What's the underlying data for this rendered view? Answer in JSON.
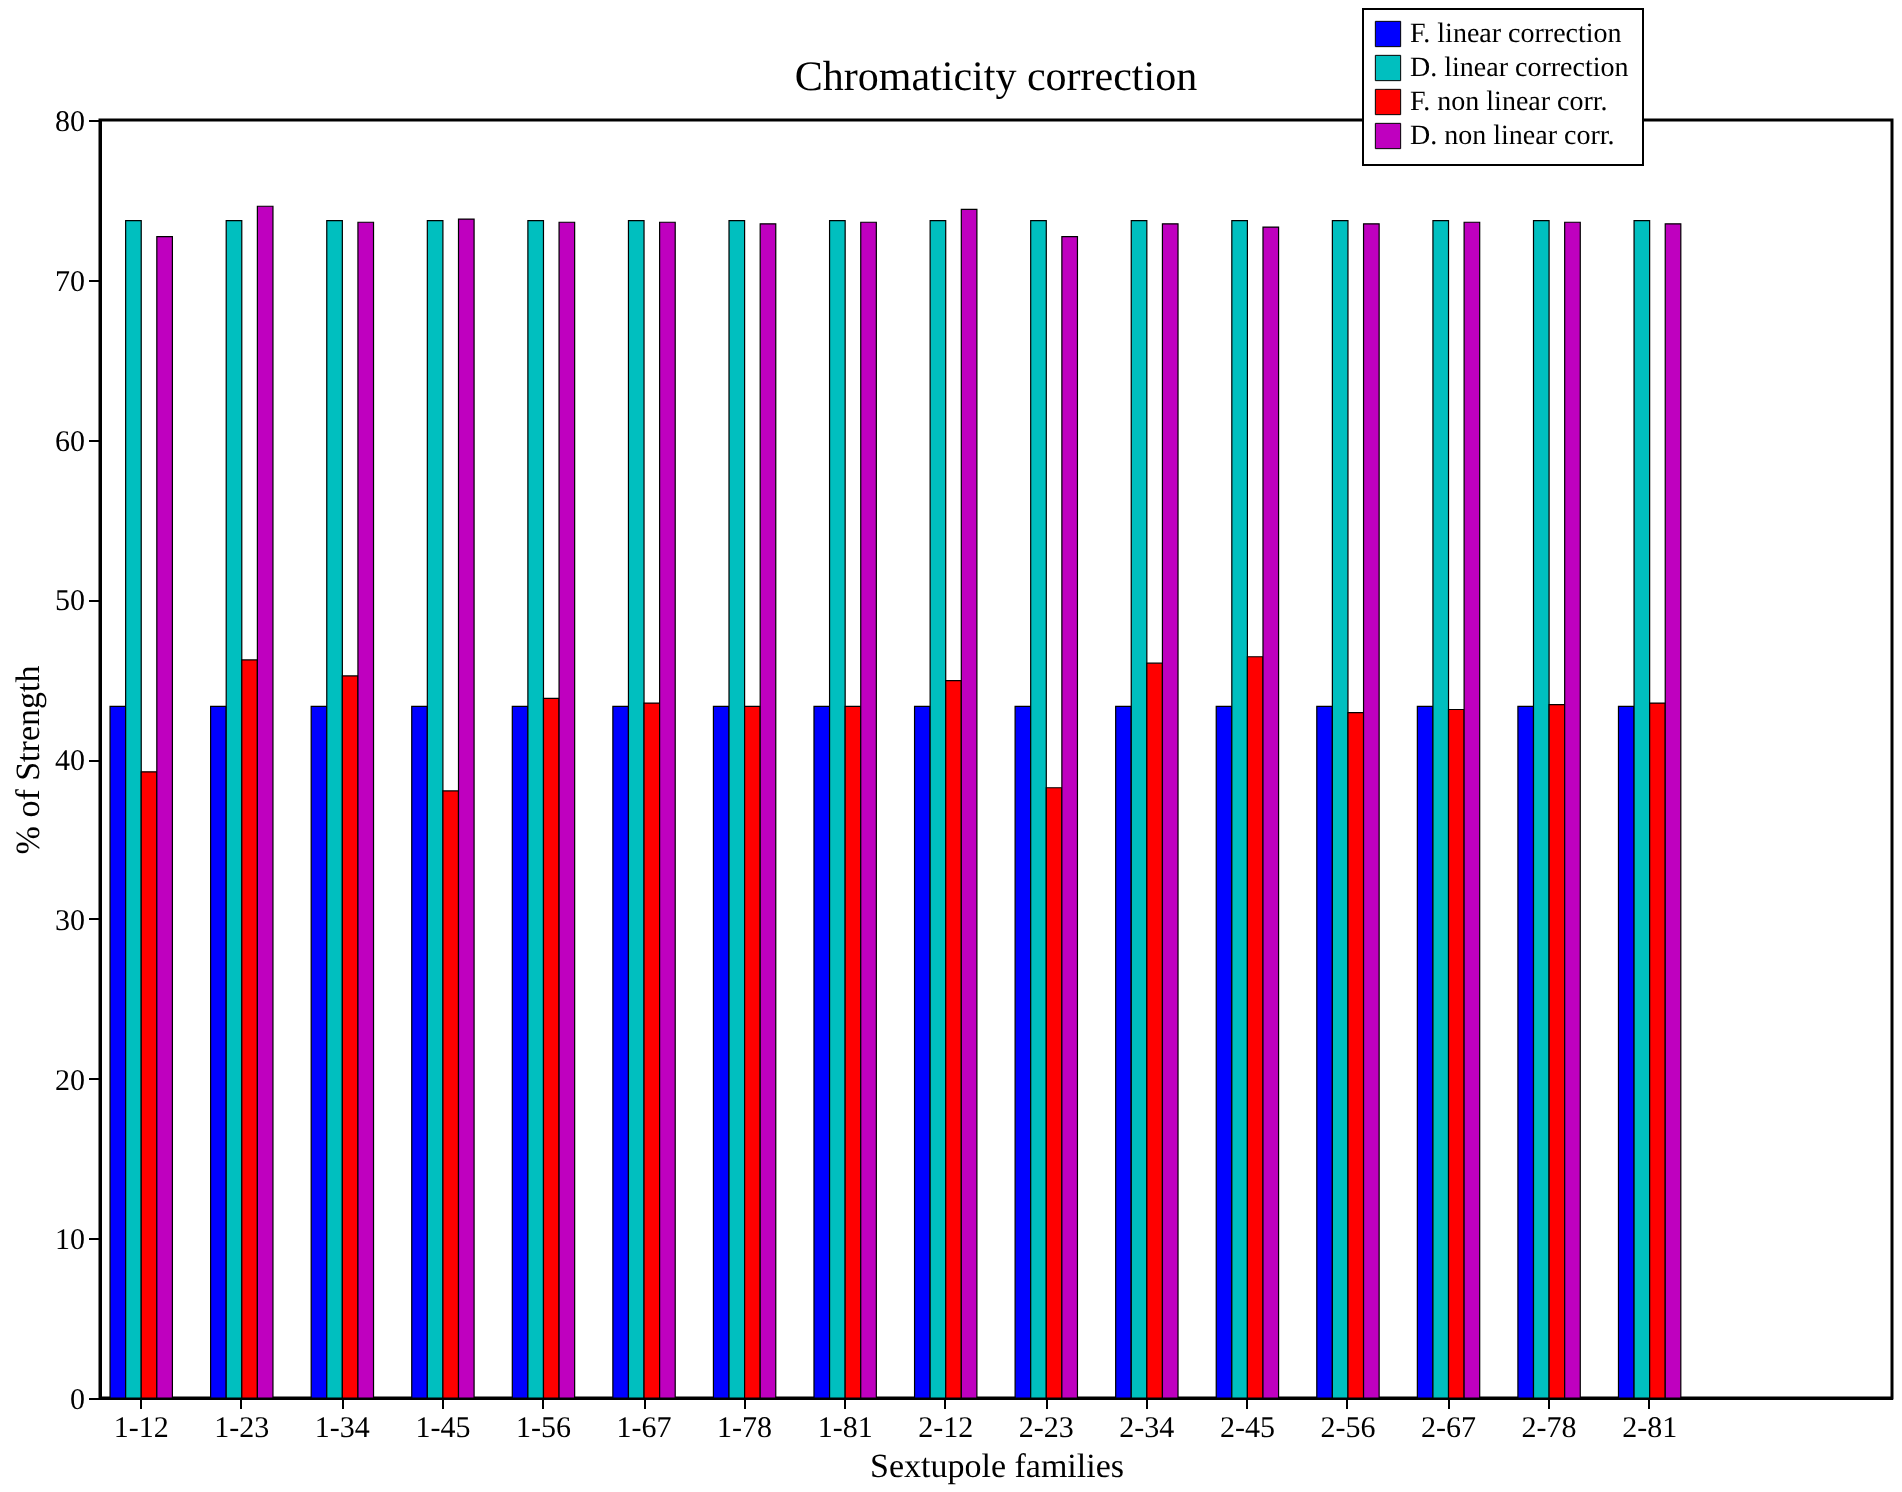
{
  "chart_data": {
    "type": "bar",
    "title": "Chromaticity correction",
    "xlabel": "Sextupole families",
    "ylabel": "% of Strength",
    "categories": [
      "1-12",
      "1-23",
      "1-34",
      "1-45",
      "1-56",
      "1-67",
      "1-78",
      "1-81",
      "2-12",
      "2-23",
      "2-34",
      "2-45",
      "2-56",
      "2-67",
      "2-78",
      "2-81"
    ],
    "series": [
      {
        "name": "F. linear correction",
        "color": "#0000ff",
        "values": [
          43.3,
          43.3,
          43.3,
          43.3,
          43.3,
          43.3,
          43.3,
          43.3,
          43.3,
          43.3,
          43.3,
          43.3,
          43.3,
          43.3,
          43.3,
          43.3
        ]
      },
      {
        "name": "D. linear correction",
        "color": "#00bfbf",
        "values": [
          73.7,
          73.7,
          73.7,
          73.7,
          73.7,
          73.7,
          73.7,
          73.7,
          73.7,
          73.7,
          73.7,
          73.7,
          73.7,
          73.7,
          73.7,
          73.7
        ]
      },
      {
        "name": "F. non linear corr.",
        "color": "#ff0000",
        "values": [
          39.2,
          46.2,
          45.2,
          38.0,
          43.8,
          43.5,
          43.3,
          43.3,
          44.9,
          38.2,
          46.0,
          46.4,
          42.9,
          43.1,
          43.4,
          43.5
        ]
      },
      {
        "name": "D. non linear corr.",
        "color": "#bf00bf",
        "values": [
          72.7,
          74.6,
          73.6,
          73.8,
          73.6,
          73.6,
          73.5,
          73.6,
          74.4,
          72.7,
          73.5,
          73.3,
          73.5,
          73.6,
          73.6,
          73.5
        ]
      }
    ],
    "ylim": [
      0,
      80
    ],
    "yticks": [
      0,
      10,
      20,
      30,
      40,
      50,
      60,
      70,
      80
    ],
    "grid": false,
    "legend": "top right"
  }
}
